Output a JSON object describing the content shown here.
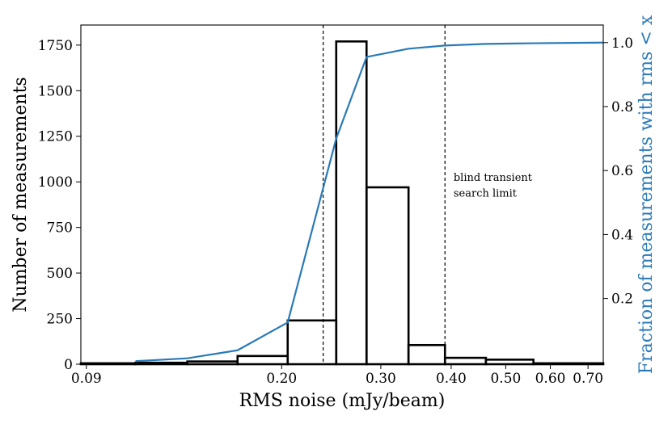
{
  "chart_data": {
    "type": "histogram+line",
    "xlabel": "RMS noise (mJy/beam)",
    "ylabel_left": "Number of measurements",
    "ylabel_right": "Fraction of measurements with rms < x",
    "x_scale": "log",
    "xlim": [
      0.088,
      0.745
    ],
    "x_ticks": [
      {
        "value": 0.09,
        "label": "0.09"
      },
      {
        "value": 0.2,
        "label": "0.20"
      },
      {
        "value": 0.3,
        "label": "0.30"
      },
      {
        "value": 0.4,
        "label": "0.40"
      },
      {
        "value": 0.5,
        "label": "0.50"
      },
      {
        "value": 0.6,
        "label": "0.60"
      },
      {
        "value": 0.7,
        "label": "0.70"
      }
    ],
    "ylim_left": [
      0,
      1860
    ],
    "y_ticks_left": [
      0,
      250,
      500,
      750,
      1000,
      1250,
      1500,
      1750
    ],
    "ylim_right": [
      -0.0055,
      1.055
    ],
    "y_ticks_right": [
      {
        "value": 0.2,
        "label": "0.2"
      },
      {
        "value": 0.4,
        "label": "0.4"
      },
      {
        "value": 0.6,
        "label": "0.6"
      },
      {
        "value": 0.8,
        "label": "0.8"
      },
      {
        "value": 1.0,
        "label": "1.0"
      }
    ],
    "histogram": {
      "color": "#000000",
      "bin_edges": [
        0.088,
        0.11,
        0.136,
        0.167,
        0.205,
        0.25,
        0.283,
        0.336,
        0.39,
        0.461,
        0.56,
        0.745
      ],
      "counts": [
        5,
        8,
        15,
        45,
        240,
        1770,
        970,
        105,
        35,
        25,
        5,
        3
      ]
    },
    "cumulative": {
      "color": "#2a7ab8",
      "x": [
        0.11,
        0.136,
        0.167,
        0.205,
        0.25,
        0.283,
        0.336,
        0.39,
        0.461,
        0.56,
        0.745
      ],
      "y": [
        0.004,
        0.013,
        0.038,
        0.125,
        0.7,
        0.955,
        0.981,
        0.991,
        0.996,
        0.998,
        1.0
      ]
    },
    "vlines": [
      {
        "x": 0.237,
        "style": "dashed"
      },
      {
        "x": 0.39,
        "style": "dashed"
      }
    ],
    "annotations": [
      {
        "text": "blind transient",
        "x": 0.396,
        "y": 1005
      },
      {
        "text": "search limit",
        "x": 0.396,
        "y": 918
      }
    ]
  }
}
